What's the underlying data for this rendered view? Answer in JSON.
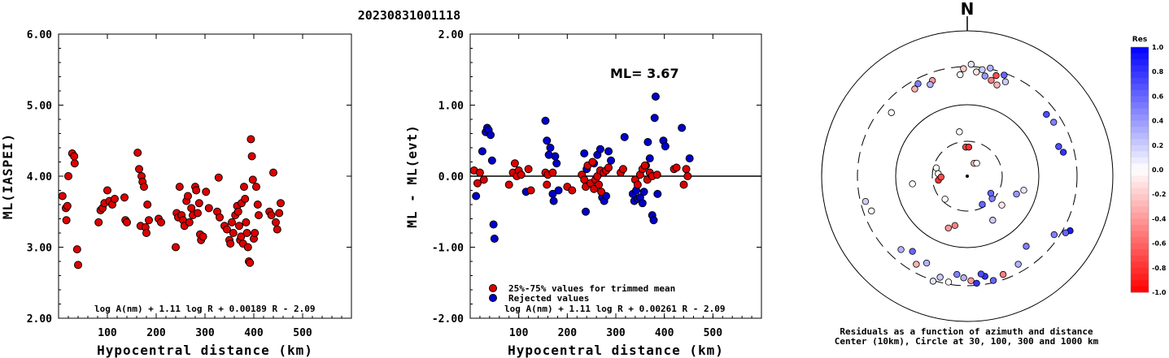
{
  "event_id": "20230831001118",
  "chart_data": [
    {
      "type": "scatter",
      "xlabel": "Hypocentral distance (km)",
      "ylabel": "ML(IASPEI)",
      "xlim": [
        0,
        600
      ],
      "ylim": [
        2.0,
        6.0
      ],
      "xticks": [
        "100",
        "200",
        "300",
        "400",
        "500"
      ],
      "yticks": [
        "2.00",
        "3.00",
        "4.00",
        "5.00",
        "6.00"
      ],
      "formula": "log A(nm) + 1.11 log R + 0.00189 R - 2.09",
      "point_color": "#dd0000",
      "points": [
        [
          8,
          3.72
        ],
        [
          15,
          3.55
        ],
        [
          16,
          3.38
        ],
        [
          18,
          3.58
        ],
        [
          20,
          4.0
        ],
        [
          28,
          4.32
        ],
        [
          32,
          4.28
        ],
        [
          33,
          4.18
        ],
        [
          38,
          2.97
        ],
        [
          40,
          2.75
        ],
        [
          82,
          3.35
        ],
        [
          86,
          3.52
        ],
        [
          90,
          3.55
        ],
        [
          94,
          3.62
        ],
        [
          100,
          3.8
        ],
        [
          104,
          3.65
        ],
        [
          110,
          3.6
        ],
        [
          115,
          3.68
        ],
        [
          135,
          3.7
        ],
        [
          137,
          3.38
        ],
        [
          140,
          3.35
        ],
        [
          162,
          4.33
        ],
        [
          165,
          4.1
        ],
        [
          168,
          3.3
        ],
        [
          170,
          4.0
        ],
        [
          172,
          3.92
        ],
        [
          175,
          3.85
        ],
        [
          178,
          3.28
        ],
        [
          180,
          3.2
        ],
        [
          182,
          3.6
        ],
        [
          185,
          3.38
        ],
        [
          205,
          3.4
        ],
        [
          210,
          3.35
        ],
        [
          240,
          3.0
        ],
        [
          242,
          3.48
        ],
        [
          245,
          3.42
        ],
        [
          248,
          3.85
        ],
        [
          252,
          3.45
        ],
        [
          255,
          3.38
        ],
        [
          258,
          3.3
        ],
        [
          262,
          3.65
        ],
        [
          265,
          3.72
        ],
        [
          268,
          3.35
        ],
        [
          272,
          3.55
        ],
        [
          275,
          3.45
        ],
        [
          280,
          3.85
        ],
        [
          282,
          3.8
        ],
        [
          285,
          3.48
        ],
        [
          288,
          3.62
        ],
        [
          290,
          3.18
        ],
        [
          292,
          3.1
        ],
        [
          296,
          3.15
        ],
        [
          302,
          3.78
        ],
        [
          308,
          3.55
        ],
        [
          325,
          3.5
        ],
        [
          328,
          3.98
        ],
        [
          330,
          3.42
        ],
        [
          340,
          3.3
        ],
        [
          345,
          3.25
        ],
        [
          350,
          3.1
        ],
        [
          352,
          3.05
        ],
        [
          355,
          3.35
        ],
        [
          358,
          3.2
        ],
        [
          362,
          3.45
        ],
        [
          366,
          3.58
        ],
        [
          368,
          3.5
        ],
        [
          370,
          3.3
        ],
        [
          372,
          3.1
        ],
        [
          374,
          3.15
        ],
        [
          375,
          3.62
        ],
        [
          378,
          3.05
        ],
        [
          380,
          3.85
        ],
        [
          382,
          3.68
        ],
        [
          384,
          3.35
        ],
        [
          386,
          3.2
        ],
        [
          388,
          3.0
        ],
        [
          390,
          2.8
        ],
        [
          392,
          2.78
        ],
        [
          394,
          4.52
        ],
        [
          396,
          4.28
        ],
        [
          398,
          3.95
        ],
        [
          400,
          3.12
        ],
        [
          402,
          3.2
        ],
        [
          405,
          3.85
        ],
        [
          408,
          3.6
        ],
        [
          410,
          3.45
        ],
        [
          432,
          3.5
        ],
        [
          436,
          3.45
        ],
        [
          440,
          4.05
        ],
        [
          445,
          3.35
        ],
        [
          448,
          3.25
        ],
        [
          452,
          3.48
        ],
        [
          455,
          3.62
        ]
      ]
    },
    {
      "type": "scatter",
      "xlabel": "Hypocentral distance (km)",
      "ylabel": "ML - ML(evt)",
      "xlim": [
        0,
        600
      ],
      "ylim": [
        -2.0,
        2.0
      ],
      "xticks": [
        "100",
        "200",
        "300",
        "400",
        "500"
      ],
      "yticks": [
        "-2.00",
        "-1.00",
        "0.00",
        "1.00",
        "2.00"
      ],
      "reference_line": 0.0,
      "annotation": "ML= 3.67",
      "formula": "log A(nm) + 1.11 log R + 0.00261 R - 2.09",
      "legend": [
        "25%-75% values for trimmed mean",
        "Rejected values"
      ],
      "legend_colors": [
        "#dd0000",
        "#0000cc"
      ],
      "trimmed": [
        [
          8,
          0.08
        ],
        [
          15,
          -0.1
        ],
        [
          20,
          0.05
        ],
        [
          28,
          -0.05
        ],
        [
          80,
          -0.12
        ],
        [
          88,
          0.05
        ],
        [
          92,
          0.18
        ],
        [
          96,
          0.0
        ],
        [
          100,
          0.08
        ],
        [
          105,
          0.02
        ],
        [
          120,
          0.1
        ],
        [
          125,
          -0.2
        ],
        [
          155,
          0.05
        ],
        [
          158,
          -0.12
        ],
        [
          160,
          0.02
        ],
        [
          170,
          0.05
        ],
        [
          200,
          -0.15
        ],
        [
          210,
          -0.2
        ],
        [
          230,
          0.02
        ],
        [
          235,
          -0.05
        ],
        [
          238,
          -0.15
        ],
        [
          242,
          0.15
        ],
        [
          248,
          -0.1
        ],
        [
          252,
          0.2
        ],
        [
          255,
          -0.18
        ],
        [
          258,
          -0.05
        ],
        [
          262,
          0.0
        ],
        [
          265,
          -0.12
        ],
        [
          268,
          0.08
        ],
        [
          270,
          -0.22
        ],
        [
          275,
          0.05
        ],
        [
          280,
          0.08
        ],
        [
          285,
          0.12
        ],
        [
          310,
          0.05
        ],
        [
          315,
          0.1
        ],
        [
          340,
          -0.05
        ],
        [
          345,
          -0.12
        ],
        [
          350,
          0.02
        ],
        [
          355,
          0.1
        ],
        [
          360,
          0.15
        ],
        [
          365,
          -0.05
        ],
        [
          370,
          0.05
        ],
        [
          375,
          0.0
        ],
        [
          385,
          0.02
        ],
        [
          420,
          0.1
        ],
        [
          425,
          0.12
        ],
        [
          440,
          -0.12
        ],
        [
          445,
          0.1
        ],
        [
          448,
          0.0
        ]
      ],
      "rejected": [
        [
          12,
          -0.28
        ],
        [
          25,
          0.35
        ],
        [
          32,
          0.62
        ],
        [
          35,
          0.68
        ],
        [
          38,
          0.65
        ],
        [
          42,
          0.58
        ],
        [
          45,
          0.22
        ],
        [
          48,
          -0.68
        ],
        [
          50,
          -0.88
        ],
        [
          115,
          -0.22
        ],
        [
          155,
          0.78
        ],
        [
          158,
          0.5
        ],
        [
          162,
          0.3
        ],
        [
          165,
          0.4
        ],
        [
          170,
          -0.25
        ],
        [
          172,
          -0.35
        ],
        [
          175,
          0.28
        ],
        [
          178,
          0.18
        ],
        [
          182,
          -0.2
        ],
        [
          235,
          0.32
        ],
        [
          238,
          -0.5
        ],
        [
          240,
          0.1
        ],
        [
          248,
          -0.1
        ],
        [
          255,
          0.18
        ],
        [
          262,
          0.3
        ],
        [
          268,
          0.38
        ],
        [
          272,
          -0.3
        ],
        [
          276,
          -0.35
        ],
        [
          280,
          -0.28
        ],
        [
          285,
          0.35
        ],
        [
          290,
          0.22
        ],
        [
          318,
          0.55
        ],
        [
          335,
          -0.25
        ],
        [
          338,
          -0.35
        ],
        [
          342,
          -0.2
        ],
        [
          345,
          -0.32
        ],
        [
          350,
          -0.3
        ],
        [
          355,
          -0.38
        ],
        [
          358,
          -0.22
        ],
        [
          362,
          0.15
        ],
        [
          366,
          0.48
        ],
        [
          370,
          0.25
        ],
        [
          375,
          -0.55
        ],
        [
          378,
          -0.62
        ],
        [
          380,
          0.82
        ],
        [
          382,
          1.12
        ],
        [
          386,
          -0.25
        ],
        [
          398,
          0.5
        ],
        [
          402,
          0.42
        ],
        [
          436,
          0.68
        ],
        [
          452,
          0.25
        ]
      ]
    },
    {
      "type": "polar-scatter",
      "north_label": "N",
      "caption_line1": "Residuals as a function of azimuth and distance",
      "caption_line2": "Center (10km), Circle at 30, 100, 300 and 1000 km",
      "colorbar_title": "Res",
      "colorbar_ticks": [
        "1.0",
        "0.8",
        "0.6",
        "0.4",
        "0.2",
        "0.0",
        "-0.2",
        "-0.4",
        "-0.6",
        "-0.8",
        "-1.0"
      ],
      "range_circles_km": [
        30,
        100,
        300,
        1000
      ],
      "points": [
        [
          5,
          0.72,
          -0.1
        ],
        [
          8,
          0.74,
          0.2
        ],
        [
          10,
          0.7,
          0.4
        ],
        [
          12,
          0.76,
          0.3
        ],
        [
          14,
          0.68,
          -0.5
        ],
        [
          16,
          0.72,
          -0.7
        ],
        [
          2,
          0.77,
          0.1
        ],
        [
          -2,
          0.74,
          -0.2
        ],
        [
          -4,
          0.7,
          0.0
        ],
        [
          18,
          0.66,
          -0.3
        ],
        [
          20,
          0.74,
          0.6
        ],
        [
          22,
          0.7,
          0.2
        ],
        [
          -20,
          0.7,
          -0.4
        ],
        [
          -22,
          0.68,
          0.3
        ],
        [
          -28,
          0.72,
          0.5
        ],
        [
          -31,
          0.7,
          -0.3
        ],
        [
          -50,
          0.68,
          0.0
        ],
        [
          52,
          0.69,
          0.7
        ],
        [
          58,
          0.7,
          0.5
        ],
        [
          72,
          0.66,
          0.7
        ],
        [
          76,
          0.68,
          0.8
        ],
        [
          118,
          0.8,
          0.9
        ],
        [
          120,
          0.78,
          0.6
        ],
        [
          124,
          0.72,
          0.5
        ],
        [
          140,
          0.63,
          0.5
        ],
        [
          150,
          0.7,
          0.3
        ],
        [
          160,
          0.72,
          -0.5
        ],
        [
          166,
          0.74,
          0.6
        ],
        [
          170,
          0.7,
          0.8
        ],
        [
          172,
          0.68,
          0.7
        ],
        [
          175,
          0.74,
          0.8
        ],
        [
          178,
          0.72,
          -0.4
        ],
        [
          182,
          0.7,
          0.3
        ],
        [
          186,
          0.68,
          0.5
        ],
        [
          190,
          0.74,
          0.0
        ],
        [
          195,
          0.72,
          0.2
        ],
        [
          198,
          0.76,
          0.1
        ],
        [
          205,
          0.66,
          0.3
        ],
        [
          210,
          0.7,
          -0.3
        ],
        [
          216,
          0.64,
          0.6
        ],
        [
          222,
          0.68,
          0.3
        ],
        [
          250,
          0.7,
          0.0
        ],
        [
          256,
          0.72,
          0.2
        ],
        [
          130,
          0.31,
          -0.1
        ],
        [
          150,
          0.35,
          0.2
        ],
        [
          194,
          0.35,
          -0.5
        ],
        [
          200,
          0.38,
          -0.4
        ],
        [
          224,
          0.22,
          0.0
        ],
        [
          262,
          0.38,
          0.0
        ],
        [
          275,
          0.2,
          0.0
        ],
        [
          285,
          0.22,
          0.0
        ],
        [
          -10,
          0.31,
          0.0
        ],
        [
          -3,
          0.2,
          -0.7
        ],
        [
          3,
          0.2,
          -0.8
        ],
        [
          28,
          0.1,
          -0.3
        ],
        [
          36,
          0.11,
          0.0
        ],
        [
          132,
          0.23,
          0.5
        ],
        [
          126,
          0.2,
          0.6
        ],
        [
          152,
          0.22,
          0.6
        ],
        [
          262,
          0.2,
          -0.8
        ],
        [
          268,
          0.18,
          -0.7
        ],
        [
          104,
          0.4,
          0.1
        ],
        [
          110,
          0.36,
          0.4
        ]
      ]
    }
  ]
}
